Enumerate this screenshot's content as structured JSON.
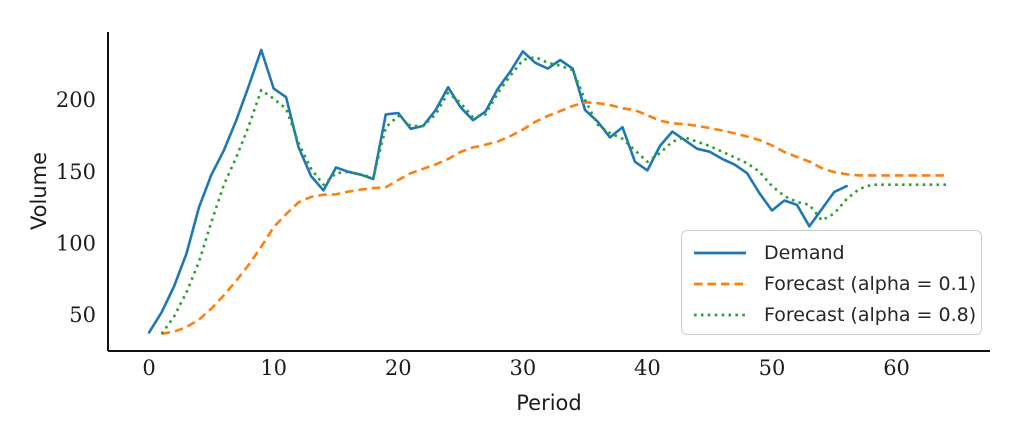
{
  "figure": {
    "background": "#ffffff",
    "axis_color": "#111111",
    "tick_label_color": "#1c1c1c"
  },
  "chart_data": {
    "type": "line",
    "title": "",
    "xlabel": "Period",
    "ylabel": "Volume",
    "xticks": [
      0,
      10,
      20,
      30,
      40,
      50,
      60
    ],
    "yticks": [
      50,
      100,
      150,
      200
    ],
    "xlim": [
      -3.3,
      67.5
    ],
    "ylim": [
      25,
      247.5
    ],
    "grid": false,
    "legend_position": "lower right",
    "series": [
      {
        "name": "Demand",
        "color": "#1f77b4",
        "style": "solid",
        "x_start": 0,
        "values": [
          38,
          52,
          70,
          93,
          125,
          148,
          165,
          186,
          210,
          235,
          208,
          202,
          167,
          147,
          137,
          153,
          150,
          148,
          145,
          190,
          191,
          180,
          182,
          193,
          209,
          195,
          186,
          192,
          208,
          220,
          234,
          226,
          222,
          228,
          222,
          193,
          185,
          174,
          181,
          157,
          151,
          168,
          178,
          172,
          166,
          164,
          159,
          155,
          149,
          135,
          123,
          130,
          127,
          112,
          124,
          136,
          140
        ]
      },
      {
        "name": "Forecast (alpha = 0.1)",
        "color": "#ff7f0e",
        "style": "dashed",
        "x_start": 1,
        "values": [
          37,
          38.5,
          41.7,
          46.8,
          54.6,
          63.9,
          74,
          85.2,
          97.7,
          111.4,
          120.5,
          128.7,
          132.5,
          134,
          134.3,
          136.2,
          137.6,
          138.6,
          139.2,
          144.3,
          149,
          152.1,
          155.1,
          158.9,
          163.9,
          167,
          168.9,
          171.2,
          174.9,
          179.4,
          184.9,
          189,
          192.3,
          195.9,
          198.5,
          197.9,
          196.6,
          194.3,
          193,
          189.4,
          185.6,
          183.8,
          183.2,
          182.1,
          180.5,
          178.8,
          176.8,
          174.6,
          172.1,
          168.4,
          163.8,
          160.4,
          157.1,
          152.6,
          149.7,
          148.3,
          147.5,
          147.5,
          147.5,
          147.5,
          147.5,
          147.5,
          147.5,
          147.5
        ]
      },
      {
        "name": "Forecast (alpha = 0.8)",
        "color": "#2ca02c",
        "style": "dotted",
        "x_start": 1,
        "values": [
          37,
          49,
          66,
          87,
          115,
          141,
          160,
          182,
          207,
          201,
          194,
          170,
          152,
          141,
          149,
          150,
          148,
          146,
          181,
          189,
          182,
          182,
          190,
          205,
          198,
          188,
          190,
          205,
          217,
          228,
          230,
          226,
          224,
          221,
          200,
          183,
          177,
          173,
          165,
          157,
          163,
          171,
          174,
          171,
          168,
          164,
          160,
          156,
          150,
          140,
          133,
          129,
          127,
          116,
          121,
          131,
          138,
          141,
          141,
          141,
          141,
          141,
          141,
          141
        ]
      }
    ]
  }
}
